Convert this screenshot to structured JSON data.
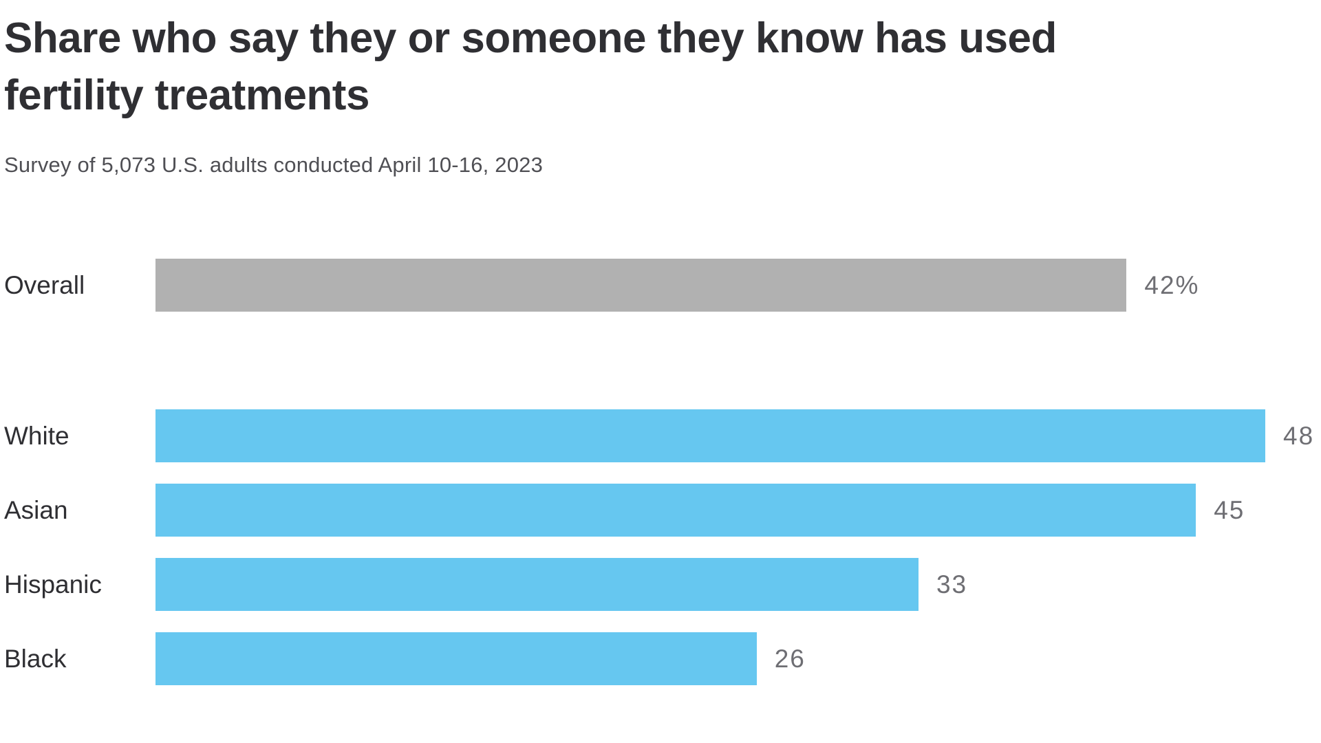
{
  "header": {
    "title": "Share who say they or someone they know has used fertility treatments",
    "subtitle": "Survey of 5,073 U.S. adults conducted April 10-16, 2023"
  },
  "colors": {
    "overall_bar": "#b1b1b1",
    "group_bar": "#66c7f0",
    "title_text": "#2f2f33",
    "subtitle_text": "#4f4f54",
    "value_text": "#6e6e73",
    "background": "#ffffff"
  },
  "chart_data": {
    "type": "bar",
    "orientation": "horizontal",
    "title": "Share who say they or someone they know has used fertility treatments",
    "subtitle": "Survey of 5,073 U.S. adults conducted April 10-16, 2023",
    "categories": [
      "Overall",
      "White",
      "Asian",
      "Hispanic",
      "Black"
    ],
    "values": [
      42,
      48,
      45,
      33,
      26
    ],
    "xlim": [
      0,
      48
    ],
    "grid": false,
    "legend": "none",
    "rows": [
      {
        "label": "Overall",
        "value": 42,
        "display": "42%",
        "color": "gray",
        "group": "overall"
      },
      {
        "label": "White",
        "value": 48,
        "display": "48",
        "color": "blue",
        "group": "race"
      },
      {
        "label": "Asian",
        "value": 45,
        "display": "45",
        "color": "blue",
        "group": "race"
      },
      {
        "label": "Hispanic",
        "value": 33,
        "display": "33",
        "color": "blue",
        "group": "race"
      },
      {
        "label": "Black",
        "value": 26,
        "display": "26",
        "color": "blue",
        "group": "race"
      }
    ]
  }
}
